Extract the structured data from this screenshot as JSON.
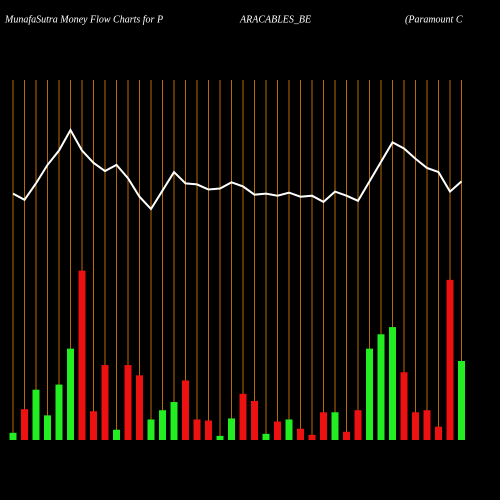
{
  "chart_data": {
    "type": "bar",
    "title": [
      "MunafaSutra  Money Flow  Charts for P",
      "ARACABLES_BE",
      "(Paramount C"
    ],
    "categories": [
      null,
      null,
      null,
      null,
      null,
      null,
      null,
      null,
      null,
      null,
      null,
      null,
      null,
      null,
      null,
      null,
      null,
      null,
      null,
      null,
      null,
      null,
      null,
      null,
      null,
      null,
      null,
      null,
      null,
      null,
      null,
      null,
      null,
      null,
      null,
      null,
      null,
      null,
      null,
      null
    ],
    "series": [
      {
        "values": [
          7,
          30,
          49,
          24,
          54,
          89,
          165,
          28,
          73,
          10,
          73,
          63,
          20,
          29,
          37,
          58,
          20,
          19,
          4,
          21,
          45,
          38,
          6,
          18,
          20,
          11,
          5,
          27,
          27,
          8,
          29,
          89,
          103,
          110,
          66,
          27,
          29,
          13,
          156,
          77
        ],
        "colors": [
          "#22ee22",
          "#ee1111",
          "#22ee22",
          "#22ee22",
          "#22ee22",
          "#22ee22",
          "#ee1111",
          "#ee1111",
          "#ee1111",
          "#22ee22",
          "#ee1111",
          "#ee1111",
          "#22ee22",
          "#22ee22",
          "#22ee22",
          "#ee1111",
          "#ee1111",
          "#ee1111",
          "#22ee22",
          "#22ee22",
          "#ee1111",
          "#ee1111",
          "#22ee22",
          "#ee1111",
          "#22ee22",
          "#ee1111",
          "#ee1111",
          "#ee1111",
          "#22ee22",
          "#ee1111",
          "#ee1111",
          "#22ee22",
          "#22ee22",
          "#22ee22",
          "#ee1111",
          "#ee1111",
          "#ee1111",
          "#ee1111",
          "#ee1111",
          "#22ee22"
        ]
      },
      {
        "type": "line",
        "color": "#ffffff",
        "values": [
          240,
          234,
          250,
          268,
          282,
          302,
          282,
          270,
          262,
          268,
          255,
          237,
          225,
          243,
          261,
          250,
          249,
          244,
          245,
          251,
          247,
          239,
          240,
          238,
          241,
          237,
          238,
          232,
          242,
          238,
          233,
          252,
          271,
          290,
          284,
          274,
          265,
          261,
          242,
          252
        ]
      }
    ],
    "grid_color": "#b86a00"
  }
}
